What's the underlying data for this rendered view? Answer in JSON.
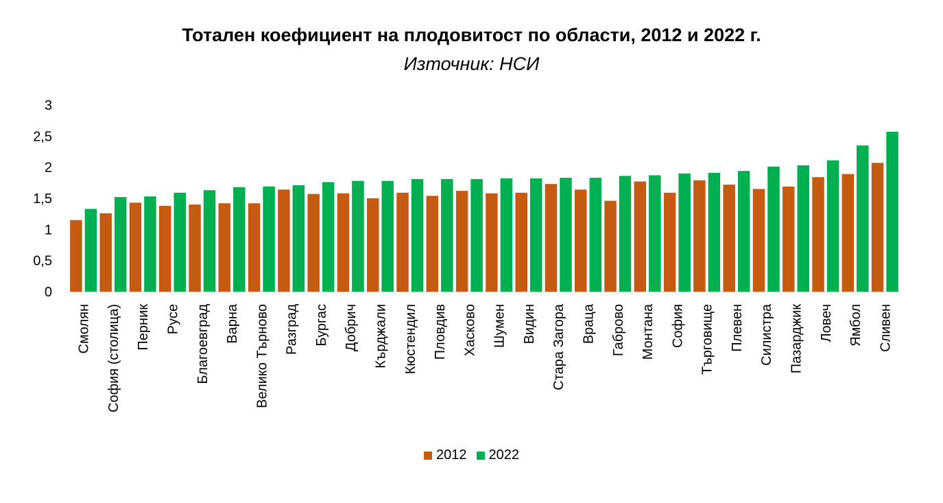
{
  "chart_data": {
    "type": "bar",
    "title": "Тотален коефициент на плодовитост по области, 2012 и 2022 г.",
    "subtitle": "Източник: НСИ",
    "xlabel": "",
    "ylabel": "",
    "ylim": [
      0,
      3
    ],
    "yticks": [
      "0",
      "0,5",
      "1",
      "1,5",
      "2",
      "2,5",
      "3"
    ],
    "grid": false,
    "legend_position": "bottom",
    "categories": [
      "Смолян",
      "София (столица)",
      "Перник",
      "Русе",
      "Благоевград",
      "Варна",
      "Велико Търново",
      "Разград",
      "Бургас",
      "Добрич",
      "Кърджали",
      "Кюстендил",
      "Пловдив",
      "Хасково",
      "Шумен",
      "Видин",
      "Стара Загора",
      "Враца",
      "Габрово",
      "Монтана",
      "София",
      "Търговище",
      "Плевен",
      "Силистра",
      "Пазарджик",
      "Ловеч",
      "Ямбол",
      "Сливен"
    ],
    "series": [
      {
        "name": "2012",
        "color": "#C55A11",
        "values": [
          1.15,
          1.26,
          1.43,
          1.38,
          1.4,
          1.42,
          1.42,
          1.64,
          1.57,
          1.58,
          1.5,
          1.59,
          1.54,
          1.62,
          1.58,
          1.59,
          1.73,
          1.64,
          1.46,
          1.77,
          1.59,
          1.79,
          1.72,
          1.65,
          1.69,
          1.84,
          1.89,
          2.07
        ]
      },
      {
        "name": "2022",
        "color": "#00B050",
        "values": [
          1.33,
          1.52,
          1.53,
          1.59,
          1.63,
          1.68,
          1.69,
          1.71,
          1.76,
          1.78,
          1.78,
          1.81,
          1.81,
          1.81,
          1.82,
          1.82,
          1.83,
          1.83,
          1.86,
          1.87,
          1.9,
          1.91,
          1.94,
          2.01,
          2.03,
          2.11,
          2.35,
          2.57
        ]
      }
    ]
  }
}
